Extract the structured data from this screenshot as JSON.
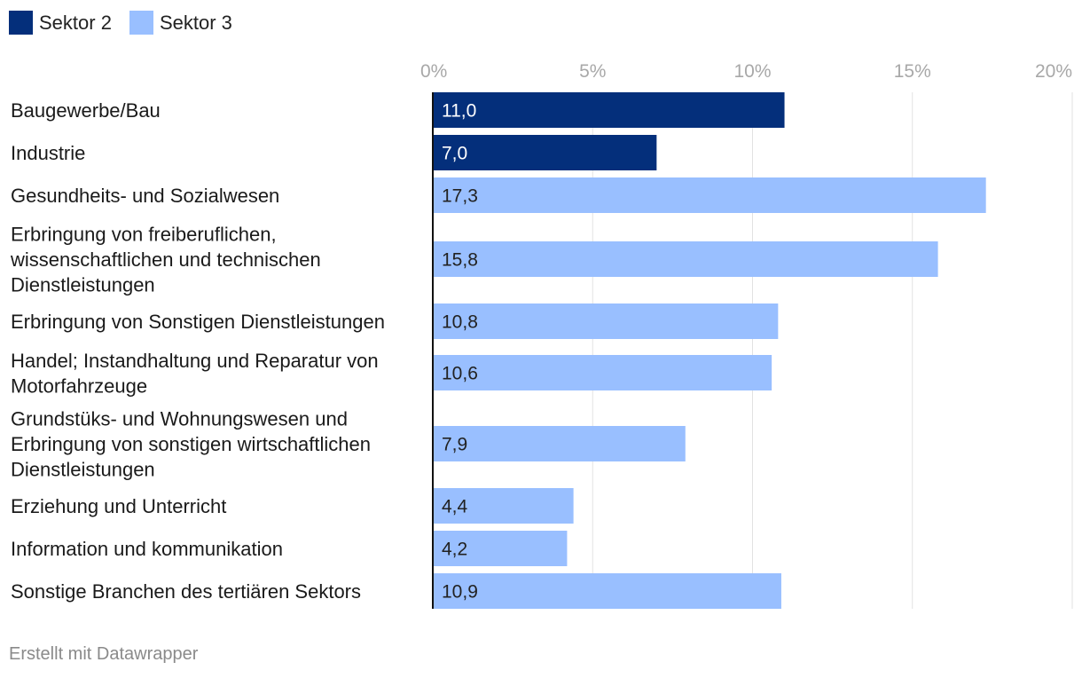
{
  "legend": {
    "items": [
      {
        "label": "Sektor 2",
        "color": "#042f7b"
      },
      {
        "label": "Sektor 3",
        "color": "#99bfff"
      }
    ]
  },
  "footer": {
    "credit": "Erstellt mit Datawrapper"
  },
  "chart_data": {
    "type": "bar",
    "orientation": "horizontal",
    "xlim": [
      0,
      20
    ],
    "ticks": [
      "0%",
      "5%",
      "10%",
      "15%",
      "20%"
    ],
    "tick_values": [
      0,
      5,
      10,
      15,
      20
    ],
    "grid": true,
    "series": [
      {
        "name": "Sektor 2",
        "color": "#042f7b"
      },
      {
        "name": "Sektor 3",
        "color": "#99bfff"
      }
    ],
    "bars": [
      {
        "label_lines": [
          "Baugewerbe/Bau"
        ],
        "value": 11.0,
        "value_label": "11,0",
        "series": "Sektor 2"
      },
      {
        "label_lines": [
          "Industrie"
        ],
        "value": 7.0,
        "value_label": "7,0",
        "series": "Sektor 2"
      },
      {
        "label_lines": [
          "Gesundheits- und Sozialwesen"
        ],
        "value": 17.3,
        "value_label": "17,3",
        "series": "Sektor 3"
      },
      {
        "label_lines": [
          "Erbringung von freiberuflichen,",
          "wissenschaftlichen und technischen",
          "Dienstleistungen"
        ],
        "value": 15.8,
        "value_label": "15,8",
        "series": "Sektor 3"
      },
      {
        "label_lines": [
          "Erbringung von Sonstigen Dienstleistungen"
        ],
        "value": 10.8,
        "value_label": "10,8",
        "series": "Sektor 3"
      },
      {
        "label_lines": [
          "Handel; Instandhaltung und Reparatur von",
          "Motorfahrzeuge"
        ],
        "value": 10.6,
        "value_label": "10,6",
        "series": "Sektor 3"
      },
      {
        "label_lines": [
          "Grundstüks- und Wohnungswesen und",
          "Erbringung von sonstigen wirtschaftlichen",
          "Dienstleistungen"
        ],
        "value": 7.9,
        "value_label": "7,9",
        "series": "Sektor 3"
      },
      {
        "label_lines": [
          "Erziehung und Unterricht"
        ],
        "value": 4.4,
        "value_label": "4,4",
        "series": "Sektor 3"
      },
      {
        "label_lines": [
          "Information und kommunikation"
        ],
        "value": 4.2,
        "value_label": "4,2",
        "series": "Sektor 3"
      },
      {
        "label_lines": [
          "Sonstige Branchen des tertiären Sektors"
        ],
        "value": 10.9,
        "value_label": "10,9",
        "series": "Sektor 3"
      }
    ]
  }
}
